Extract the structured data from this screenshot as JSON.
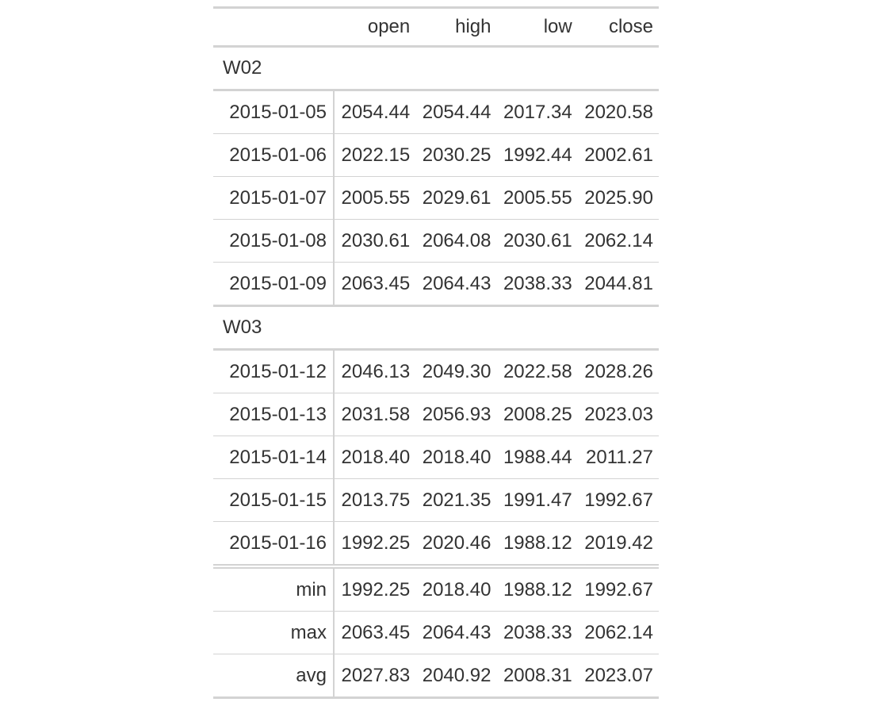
{
  "table": {
    "columns": [
      "open",
      "high",
      "low",
      "close"
    ],
    "groups": [
      {
        "label": "W02",
        "rows": [
          {
            "date": "2015-01-05",
            "open": "2054.44",
            "high": "2054.44",
            "low": "2017.34",
            "close": "2020.58"
          },
          {
            "date": "2015-01-06",
            "open": "2022.15",
            "high": "2030.25",
            "low": "1992.44",
            "close": "2002.61"
          },
          {
            "date": "2015-01-07",
            "open": "2005.55",
            "high": "2029.61",
            "low": "2005.55",
            "close": "2025.90"
          },
          {
            "date": "2015-01-08",
            "open": "2030.61",
            "high": "2064.08",
            "low": "2030.61",
            "close": "2062.14"
          },
          {
            "date": "2015-01-09",
            "open": "2063.45",
            "high": "2064.43",
            "low": "2038.33",
            "close": "2044.81"
          }
        ]
      },
      {
        "label": "W03",
        "rows": [
          {
            "date": "2015-01-12",
            "open": "2046.13",
            "high": "2049.30",
            "low": "2022.58",
            "close": "2028.26"
          },
          {
            "date": "2015-01-13",
            "open": "2031.58",
            "high": "2056.93",
            "low": "2008.25",
            "close": "2023.03"
          },
          {
            "date": "2015-01-14",
            "open": "2018.40",
            "high": "2018.40",
            "low": "1988.44",
            "close": "2011.27"
          },
          {
            "date": "2015-01-15",
            "open": "2013.75",
            "high": "2021.35",
            "low": "1991.47",
            "close": "1992.67"
          },
          {
            "date": "2015-01-16",
            "open": "1992.25",
            "high": "2020.46",
            "low": "1988.12",
            "close": "2019.42"
          }
        ]
      }
    ],
    "summary": [
      {
        "label": "min",
        "open": "1992.25",
        "high": "2018.40",
        "low": "1988.12",
        "close": "1992.67"
      },
      {
        "label": "max",
        "open": "2063.45",
        "high": "2064.43",
        "low": "2038.33",
        "close": "2062.14"
      },
      {
        "label": "avg",
        "open": "2027.83",
        "high": "2040.92",
        "low": "2008.31",
        "close": "2023.07"
      }
    ]
  }
}
